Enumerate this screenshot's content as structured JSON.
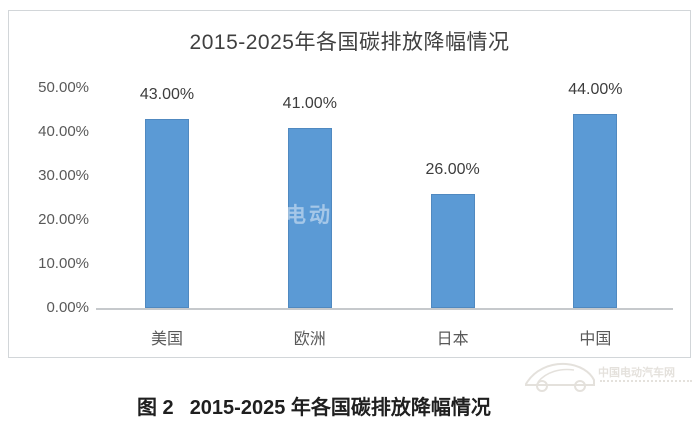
{
  "figure": {
    "caption_prefix": "图 2",
    "caption_text": "2015-2025 年各国碳排放降幅情况"
  },
  "watermark": {
    "center_text": "中国电动汽车网",
    "corner_text": "中国电动汽车网"
  },
  "chart_data": {
    "type": "bar",
    "title": "2015-2025年各国碳排放降幅情况",
    "categories": [
      "美国",
      "欧洲",
      "日本",
      "中国"
    ],
    "values": [
      43,
      41,
      26,
      44
    ],
    "data_labels": [
      "43.00%",
      "41.00%",
      "26.00%",
      "44.00%"
    ],
    "y_ticks": [
      "50.00%",
      "40.00%",
      "30.00%",
      "20.00%",
      "10.00%",
      "0.00%"
    ],
    "y_tick_values": [
      50,
      40,
      30,
      20,
      10,
      0
    ],
    "ylim": [
      0,
      50
    ],
    "grid": false,
    "legend": false,
    "bar_color": "#5B9AD5",
    "axis_label_color": "#595959",
    "title_color": "#404040"
  }
}
